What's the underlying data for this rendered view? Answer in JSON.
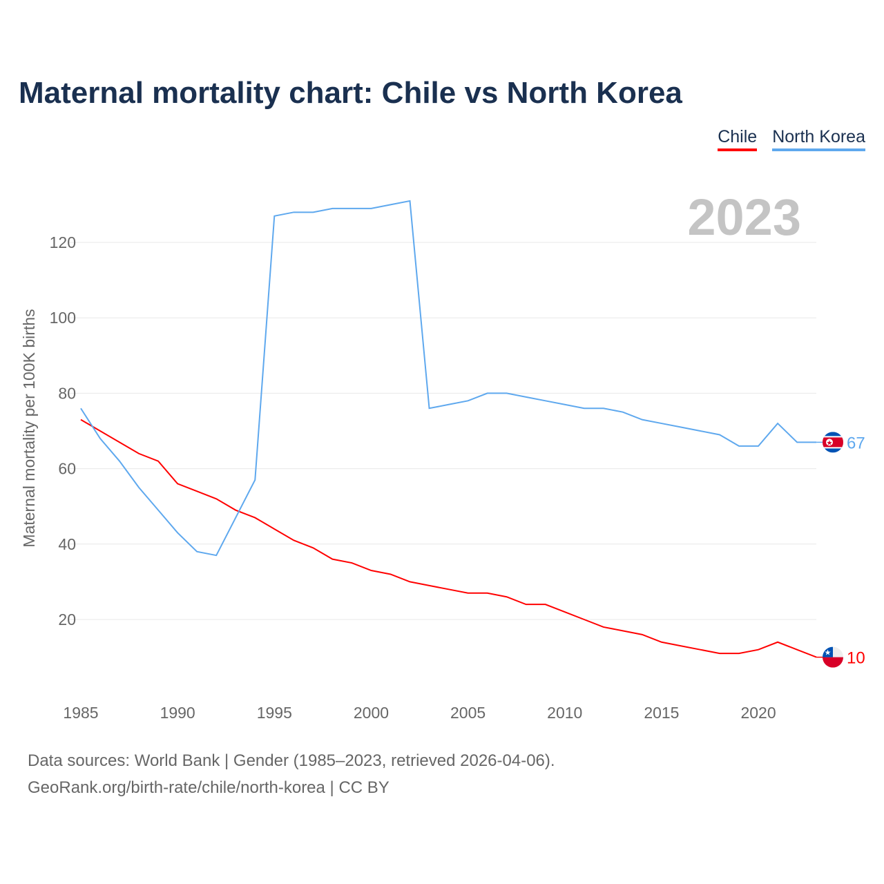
{
  "title": "Maternal mortality chart: Chile vs North Korea",
  "year_label": "2023",
  "footer": [
    "Data sources: World Bank | Gender (1985–2023, retrieved 2026-04-06).",
    "GeoRank.org/birth-rate/chile/north-korea | CC BY"
  ],
  "chart_data": {
    "type": "line",
    "title": "Maternal mortality chart: Chile vs North Korea",
    "xlabel": "",
    "ylabel": "Maternal mortality per 100K births",
    "xlim": [
      1985,
      2023
    ],
    "ylim": [
      0,
      130
    ],
    "yticks": [
      20,
      40,
      60,
      80,
      100,
      120
    ],
    "xticks": [
      1985,
      1990,
      1995,
      2000,
      2005,
      2010,
      2015,
      2020
    ],
    "grid": true,
    "legend": "top-right",
    "x": [
      1985,
      1986,
      1987,
      1988,
      1989,
      1990,
      1991,
      1992,
      1993,
      1994,
      1995,
      1996,
      1997,
      1998,
      1999,
      2000,
      2001,
      2002,
      2003,
      2004,
      2005,
      2006,
      2007,
      2008,
      2009,
      2010,
      2011,
      2012,
      2013,
      2014,
      2015,
      2016,
      2017,
      2018,
      2019,
      2020,
      2021,
      2022,
      2023
    ],
    "series": [
      {
        "name": "Chile",
        "color": "#ff0000",
        "end_label": "10",
        "values": [
          73,
          70,
          67,
          64,
          62,
          56,
          54,
          52,
          49,
          47,
          44,
          41,
          39,
          36,
          35,
          33,
          32,
          30,
          29,
          28,
          27,
          27,
          26,
          24,
          24,
          22,
          20,
          18,
          17,
          16,
          14,
          13,
          12,
          11,
          11,
          12,
          14,
          12,
          10
        ]
      },
      {
        "name": "North Korea",
        "color": "#5ea8ee",
        "end_label": "67",
        "values": [
          76,
          68,
          62,
          55,
          49,
          43,
          38,
          37,
          47,
          57,
          127,
          128,
          128,
          129,
          129,
          129,
          130,
          131,
          76,
          77,
          78,
          80,
          80,
          79,
          78,
          77,
          76,
          76,
          75,
          73,
          72,
          71,
          70,
          69,
          66,
          66,
          72,
          67,
          67
        ]
      }
    ]
  }
}
